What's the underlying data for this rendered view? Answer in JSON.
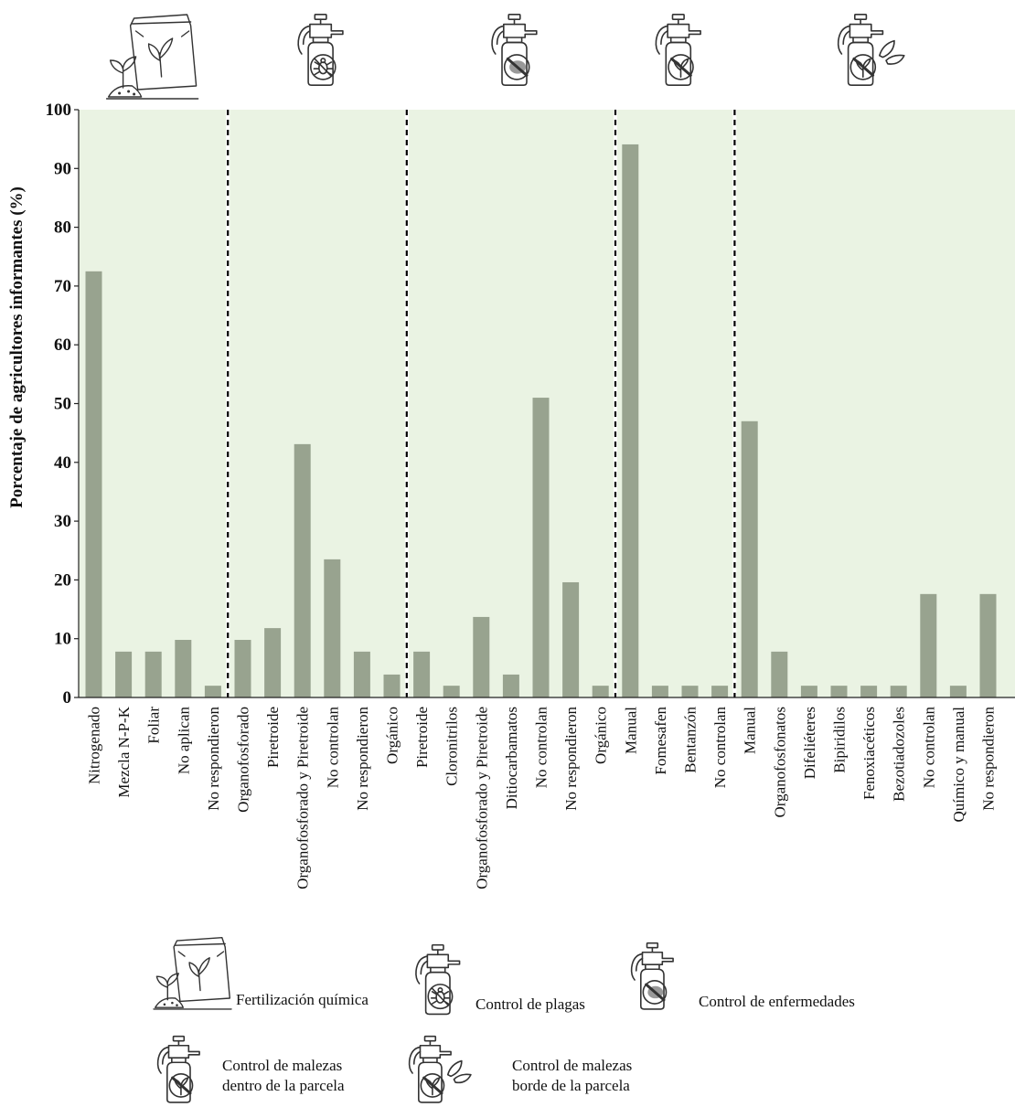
{
  "chart_data": {
    "type": "bar",
    "title": "",
    "xlabel": "",
    "ylabel": "Porcentaje de agricultores informantes (%)",
    "ylim": [
      0,
      100
    ],
    "yticks": [
      0,
      10,
      20,
      30,
      40,
      50,
      60,
      70,
      80,
      90,
      100
    ],
    "grid": false,
    "legend": "bottom",
    "colors": {
      "bar": "#98A38F",
      "panel": "#EAF3E3",
      "divider": "#000000"
    },
    "groups": [
      {
        "name": "Fertilización química",
        "icon": "fertilizer-bag-icon",
        "categories": [
          "Nitrogenado",
          "Mezcla N-P-K",
          "Foliar",
          "No aplican",
          "No respondieron"
        ],
        "values": [
          72.5,
          7.8,
          7.8,
          9.8,
          2.0
        ]
      },
      {
        "name": "Control de plagas",
        "icon": "sprayer-pest-icon",
        "categories": [
          "Organofosforado",
          "Piretroide",
          "Organofosforado y Piretroide",
          "No controlan",
          "No respondieron",
          "Orgánico"
        ],
        "values": [
          9.8,
          11.8,
          43.1,
          23.5,
          7.8,
          3.9
        ]
      },
      {
        "name": "Control de enfermedades",
        "icon": "sprayer-disease-icon",
        "categories": [
          "Piretroide",
          "Cloronitrilos",
          "Organofosforado y Piretroide",
          "Ditiocarbamatos",
          "No controlan",
          "No respondieron",
          "Orgánico"
        ],
        "values": [
          7.8,
          2.0,
          13.7,
          3.9,
          51.0,
          19.6,
          2.0
        ]
      },
      {
        "name": "Control de malezas dentro de la parcela",
        "icon": "sprayer-weed-icon",
        "categories": [
          "Manual",
          "Fomesafen",
          "Bentanzón",
          "No controlan"
        ],
        "values": [
          94.1,
          2.0,
          2.0,
          2.0
        ]
      },
      {
        "name": "Control de malezas borde de la parcela",
        "icon": "sprayer-weed-border-icon",
        "categories": [
          "Manual",
          "Organofosfonatos",
          "Difeliéteres",
          "Bipiridilos",
          "Fenoxiacéticos",
          "Bezotiadozoles",
          "No controlan",
          "Químico y manual",
          "No respondieron"
        ],
        "values": [
          47.0,
          7.8,
          2.0,
          2.0,
          2.0,
          2.0,
          17.6,
          2.0,
          17.6
        ]
      }
    ],
    "legend_entries": [
      {
        "icon": "fertilizer-bag-icon",
        "lines": [
          "Fertilización química"
        ]
      },
      {
        "icon": "sprayer-pest-icon",
        "lines": [
          "Control de plagas"
        ]
      },
      {
        "icon": "sprayer-disease-icon",
        "lines": [
          "Control de enfermedades"
        ]
      },
      {
        "icon": "sprayer-weed-icon",
        "lines": [
          "Control de malezas",
          "dentro de la parcela"
        ]
      },
      {
        "icon": "sprayer-weed-border-icon",
        "lines": [
          "Control de malezas",
          "borde de la parcela"
        ]
      }
    ]
  }
}
